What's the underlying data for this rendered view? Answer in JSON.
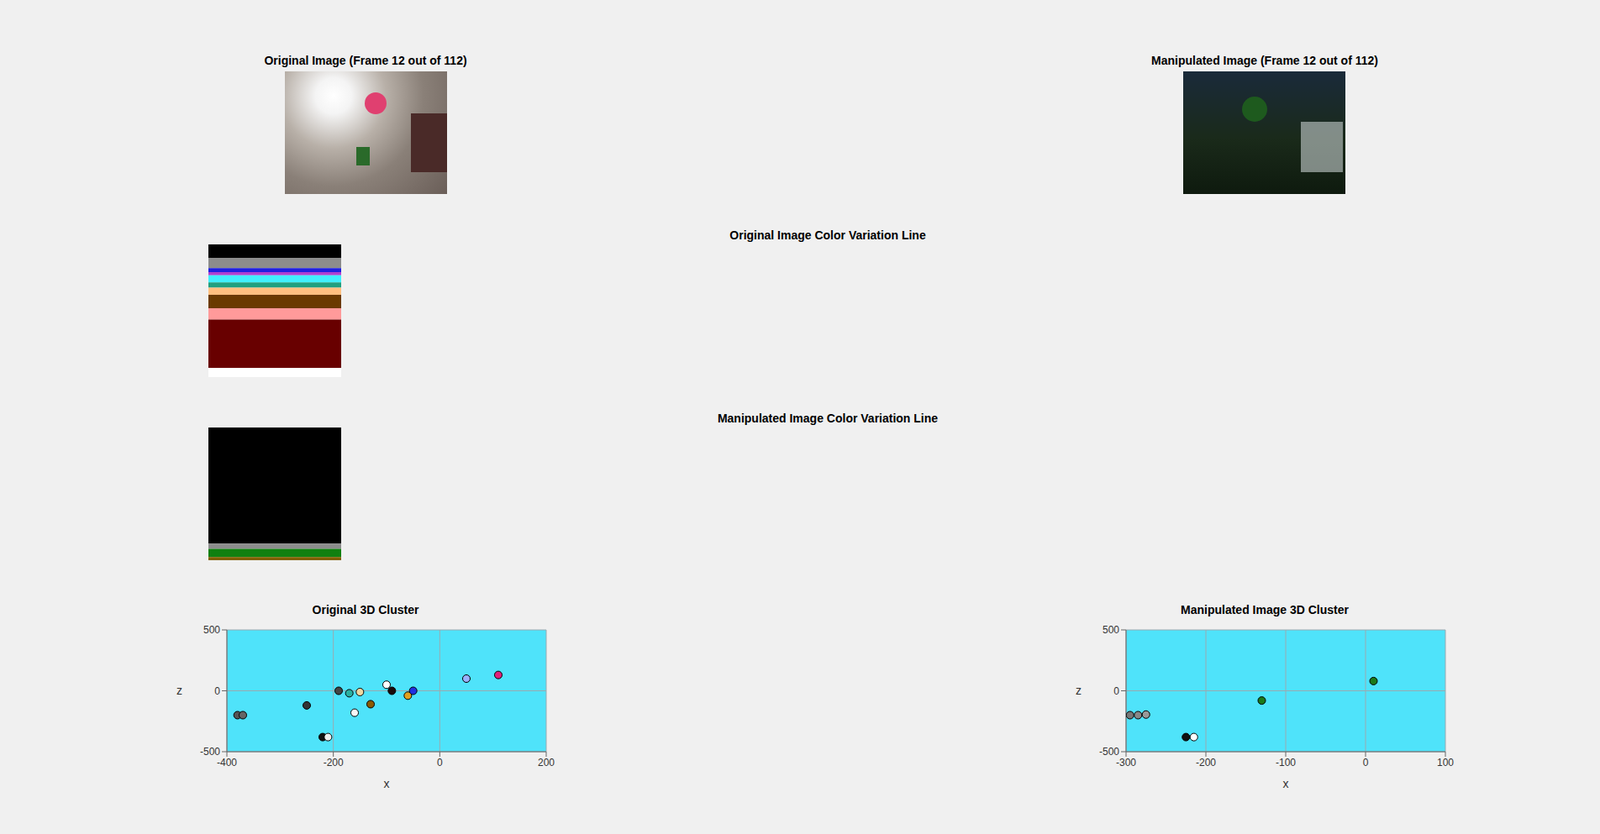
{
  "images": [
    {
      "title": "Original Image (Frame 12 out of 112)"
    },
    {
      "title": "Manipulated Image (Frame 12 out of 112)"
    }
  ],
  "chart_data": [
    {
      "type": "bar",
      "title": "Original Image Color Variation Line",
      "stacked": true,
      "tick_labels": false,
      "ylim": [
        0,
        129
      ],
      "series": [
        {
          "color": "#000000",
          "values": [
            13
          ]
        },
        {
          "color": "#8c8c8c",
          "values": [
            10
          ]
        },
        {
          "color": "#2020e0",
          "values": [
            4
          ]
        },
        {
          "color": "#b040d0",
          "values": [
            3
          ]
        },
        {
          "color": "#40f0ff",
          "values": [
            7
          ]
        },
        {
          "color": "#20a080",
          "values": [
            5
          ]
        },
        {
          "color": "#ffc080",
          "values": [
            7
          ]
        },
        {
          "color": "#6a3a00",
          "values": [
            13
          ]
        },
        {
          "color": "#ff9a9a",
          "values": [
            11
          ]
        },
        {
          "color": "#680000",
          "values": [
            47
          ]
        },
        {
          "color": "#ffffff",
          "values": [
            9
          ]
        }
      ]
    },
    {
      "type": "bar",
      "title": "Manipulated Image Color Variation Line",
      "stacked": true,
      "tick_labels": false,
      "ylim": [
        0,
        128
      ],
      "series": [
        {
          "color": "#000000",
          "values": [
            112
          ]
        },
        {
          "color": "#8c8c8c",
          "values": [
            5
          ]
        },
        {
          "color": "#108010",
          "values": [
            8
          ]
        },
        {
          "color": "#806000",
          "values": [
            3
          ]
        }
      ]
    },
    {
      "type": "scatter",
      "title": "Original 3D Cluster",
      "xlabel": "x",
      "ylabel": "z",
      "grid": true,
      "xlim": [
        -400,
        200
      ],
      "xticks": [
        -400,
        -200,
        0,
        200
      ],
      "ylim": [
        -500,
        500
      ],
      "yticks": [
        -500,
        0,
        500
      ],
      "points": [
        {
          "x": -380,
          "z": -200,
          "color": "#555555"
        },
        {
          "x": -370,
          "z": -200,
          "color": "#666666"
        },
        {
          "x": -250,
          "z": -120,
          "color": "#333333"
        },
        {
          "x": -220,
          "z": -380,
          "color": "#111111"
        },
        {
          "x": -210,
          "z": -380,
          "color": "#eeeeee"
        },
        {
          "x": -190,
          "z": 0,
          "color": "#444444"
        },
        {
          "x": -170,
          "z": -20,
          "color": "#2ab0a0"
        },
        {
          "x": -150,
          "z": -10,
          "color": "#f0d8a0"
        },
        {
          "x": -160,
          "z": -180,
          "color": "#f8f8f8"
        },
        {
          "x": -130,
          "z": -110,
          "color": "#8b5a00"
        },
        {
          "x": -100,
          "z": 50,
          "color": "#ffffff"
        },
        {
          "x": -90,
          "z": 0,
          "color": "#1a0a0a"
        },
        {
          "x": -60,
          "z": -40,
          "color": "#e0a020"
        },
        {
          "x": -50,
          "z": 0,
          "color": "#2030e0"
        },
        {
          "x": 50,
          "z": 100,
          "color": "#9ab0ff"
        },
        {
          "x": 110,
          "z": 130,
          "color": "#e0207a"
        }
      ]
    },
    {
      "type": "scatter",
      "title": "Manipulated Image 3D Cluster",
      "xlabel": "x",
      "ylabel": "z",
      "grid": true,
      "xlim": [
        -300,
        100
      ],
      "xticks": [
        -300,
        -200,
        -100,
        0,
        100
      ],
      "ylim": [
        -500,
        500
      ],
      "yticks": [
        -500,
        0,
        500
      ],
      "points": [
        {
          "x": -295,
          "z": -200,
          "color": "#777777"
        },
        {
          "x": -285,
          "z": -200,
          "color": "#888888"
        },
        {
          "x": -275,
          "z": -195,
          "color": "#999999"
        },
        {
          "x": -225,
          "z": -380,
          "color": "#111111"
        },
        {
          "x": -215,
          "z": -380,
          "color": "#ffffff"
        },
        {
          "x": -130,
          "z": -80,
          "color": "#1a7a1a"
        },
        {
          "x": 10,
          "z": 80,
          "color": "#1a7a1a"
        }
      ]
    }
  ]
}
